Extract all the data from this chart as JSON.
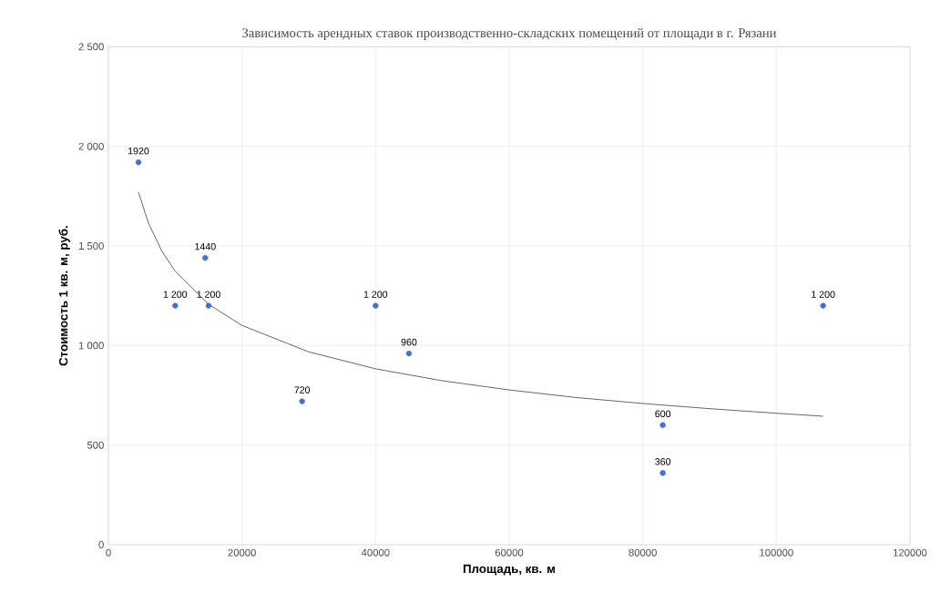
{
  "chart_data": {
    "type": "scatter",
    "title": "Зависимость арендных ставок производственно-складских помещений от площади в г. Рязани",
    "xlabel": "Площадь, кв. м",
    "ylabel": "Стоимость 1 кв. м, руб.",
    "xlim": [
      0,
      120000
    ],
    "ylim": [
      0,
      2500
    ],
    "xticks": [
      0,
      20000,
      40000,
      60000,
      80000,
      100000,
      120000
    ],
    "yticks": [
      0,
      500,
      {
        "value": 1000,
        "label": "1 000"
      },
      {
        "value": 1500,
        "label": "1 500"
      },
      {
        "value": 2000,
        "label": "2 000"
      },
      {
        "value": 2500,
        "label": "2 500"
      }
    ],
    "grid": true,
    "marker": "circle",
    "series": [
      {
        "color": "#4472c4",
        "x": [
          4500,
          10000,
          14500,
          15000,
          29000,
          40000,
          45000,
          83000,
          83000,
          107000
        ],
        "values": [
          1920,
          1200,
          1440,
          1200,
          720,
          1200,
          960,
          600,
          360,
          1200
        ],
        "value_labels": [
          "1920",
          "1 200",
          "1440",
          "1 200",
          "720",
          "1 200",
          "960",
          "600",
          "360",
          "1 200"
        ]
      },
      {
        "type": "line",
        "color": "#404040",
        "marker": "none",
        "line_style": "solid",
        "x": [
          4500,
          6000,
          8000,
          10000,
          15000,
          20000,
          30000,
          40000,
          50000,
          60000,
          70000,
          80000,
          90000,
          100000,
          107000
        ],
        "values": [
          1770,
          1615,
          1474,
          1373,
          1207,
          1101,
          968,
          883,
          823,
          777,
          739,
          709,
          683,
          660,
          645
        ]
      }
    ]
  }
}
